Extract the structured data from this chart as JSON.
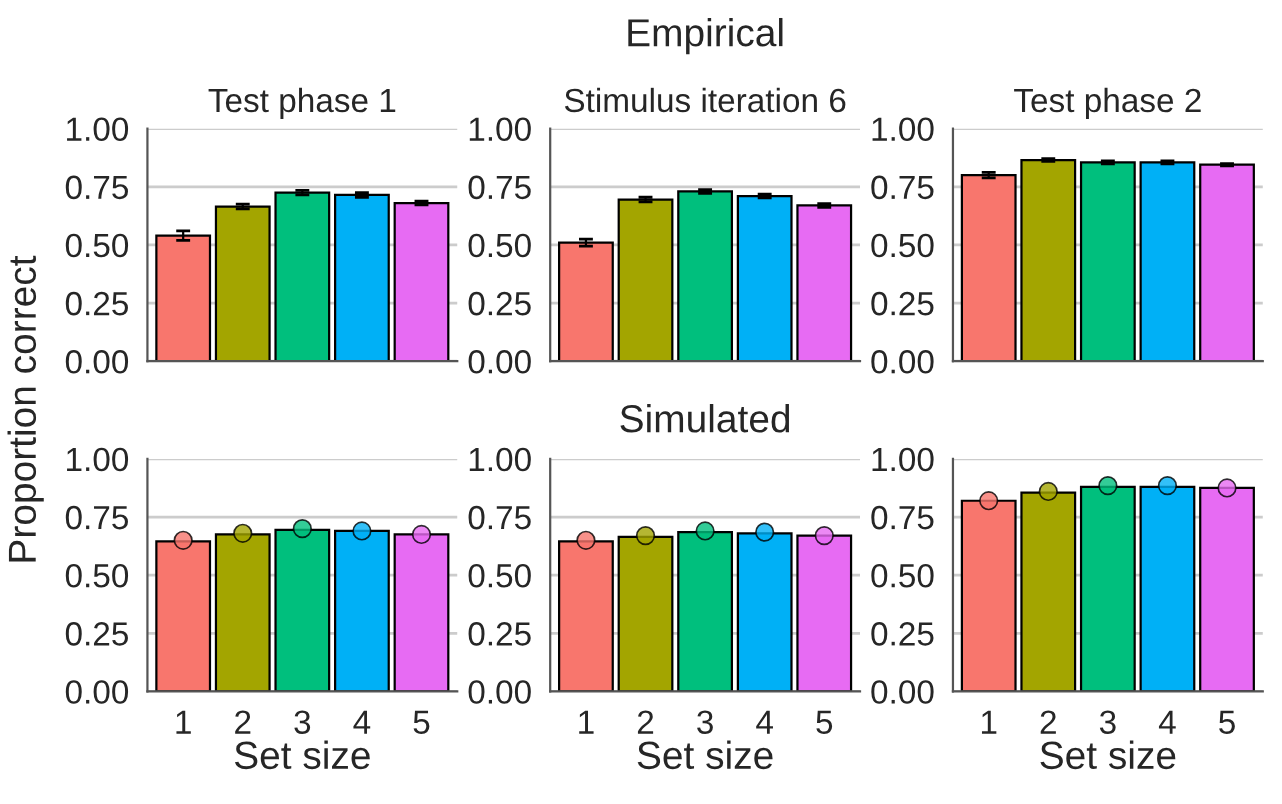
{
  "chart_data": [
    {
      "type": "bar",
      "title": "Test phase 1",
      "ylabel": "Proportion correct",
      "categories": [
        "1",
        "2",
        "3",
        "4",
        "5"
      ],
      "tick_labels": "y",
      "ylim": [
        0,
        1
      ],
      "yticks": [
        {
          "value": 0,
          "label": "0.00"
        },
        {
          "value": 0.25,
          "label": "0.25"
        },
        {
          "value": 0.5,
          "label": "0.50"
        },
        {
          "value": 0.75,
          "label": "0.75"
        },
        {
          "value": 1,
          "label": "1.00"
        }
      ],
      "grid": "y",
      "series": [
        {
          "colors": [
            "#f8766d",
            "#a3a500",
            "#00bf7d",
            "#00b0f6",
            "#e76bf3"
          ],
          "values": [
            0.54,
            0.665,
            0.725,
            0.715,
            0.68
          ],
          "errors": [
            0.02,
            0.01,
            0.01,
            0.01,
            0.008
          ]
        }
      ]
    },
    {
      "type": "bar",
      "title": "Stimulus iteration 6",
      "annotations": [
        "Empirical"
      ],
      "categories": [
        "1",
        "2",
        "3",
        "4",
        "5"
      ],
      "tick_labels": "y",
      "ylim": [
        0,
        1
      ],
      "yticks": [
        {
          "value": 0,
          "label": "0.00"
        },
        {
          "value": 0.25,
          "label": "0.25"
        },
        {
          "value": 0.5,
          "label": "0.50"
        },
        {
          "value": 0.75,
          "label": "0.75"
        },
        {
          "value": 1,
          "label": "1.00"
        }
      ],
      "grid": "y",
      "series": [
        {
          "colors": [
            "#f8766d",
            "#a3a500",
            "#00bf7d",
            "#00b0f6",
            "#e76bf3"
          ],
          "values": [
            0.51,
            0.695,
            0.73,
            0.71,
            0.67
          ],
          "errors": [
            0.015,
            0.01,
            0.008,
            0.008,
            0.008
          ]
        }
      ]
    },
    {
      "type": "bar",
      "title": "Test phase 2",
      "categories": [
        "1",
        "2",
        "3",
        "4",
        "5"
      ],
      "tick_labels": "y",
      "ylim": [
        0,
        1
      ],
      "yticks": [
        {
          "value": 0,
          "label": "0.00"
        },
        {
          "value": 0.25,
          "label": "0.25"
        },
        {
          "value": 0.5,
          "label": "0.50"
        },
        {
          "value": 0.75,
          "label": "0.75"
        },
        {
          "value": 1,
          "label": "1.00"
        }
      ],
      "grid": "y",
      "series": [
        {
          "colors": [
            "#f8766d",
            "#a3a500",
            "#00bf7d",
            "#00b0f6",
            "#e76bf3"
          ],
          "values": [
            0.8,
            0.865,
            0.855,
            0.855,
            0.845
          ],
          "errors": [
            0.012,
            0.006,
            0.006,
            0.006,
            0.005
          ]
        }
      ]
    },
    {
      "type": "bar",
      "xlabel": "Set size",
      "categories": [
        "1",
        "2",
        "3",
        "4",
        "5"
      ],
      "ylim": [
        0,
        1
      ],
      "yticks": [
        {
          "value": 0,
          "label": "0.00"
        },
        {
          "value": 0.25,
          "label": "0.25"
        },
        {
          "value": 0.5,
          "label": "0.50"
        },
        {
          "value": 0.75,
          "label": "0.75"
        },
        {
          "value": 1,
          "label": "1.00"
        }
      ],
      "grid": "y",
      "marker": "circle",
      "series": [
        {
          "colors": [
            "#f8766d",
            "#a3a500",
            "#00bf7d",
            "#00b0f6",
            "#e76bf3"
          ],
          "values": [
            0.645,
            0.675,
            0.695,
            0.69,
            0.675
          ]
        },
        {
          "type": "scatter",
          "x": [
            "1",
            "2",
            "3",
            "4",
            "5"
          ],
          "colors": [
            "#f8766d",
            "#a3a500",
            "#00bf7d",
            "#00b0f6",
            "#e76bf3"
          ],
          "values": [
            0.65,
            0.68,
            0.7,
            0.69,
            0.675
          ]
        }
      ]
    },
    {
      "type": "bar",
      "xlabel": "Set size",
      "annotations": [
        "Simulated"
      ],
      "categories": [
        "1",
        "2",
        "3",
        "4",
        "5"
      ],
      "ylim": [
        0,
        1
      ],
      "yticks": [
        {
          "value": 0,
          "label": "0.00"
        },
        {
          "value": 0.25,
          "label": "0.25"
        },
        {
          "value": 0.5,
          "label": "0.50"
        },
        {
          "value": 0.75,
          "label": "0.75"
        },
        {
          "value": 1,
          "label": "1.00"
        }
      ],
      "grid": "y",
      "marker": "circle",
      "series": [
        {
          "colors": [
            "#f8766d",
            "#a3a500",
            "#00bf7d",
            "#00b0f6",
            "#e76bf3"
          ],
          "values": [
            0.645,
            0.665,
            0.685,
            0.68,
            0.67
          ]
        },
        {
          "type": "scatter",
          "x": [
            "1",
            "2",
            "3",
            "4",
            "5"
          ],
          "colors": [
            "#f8766d",
            "#a3a500",
            "#00bf7d",
            "#00b0f6",
            "#e76bf3"
          ],
          "values": [
            0.65,
            0.67,
            0.69,
            0.685,
            0.67
          ]
        }
      ]
    },
    {
      "type": "bar",
      "xlabel": "Set size",
      "categories": [
        "1",
        "2",
        "3",
        "4",
        "5"
      ],
      "ylim": [
        0,
        1
      ],
      "yticks": [
        {
          "value": 0,
          "label": "0.00"
        },
        {
          "value": 0.25,
          "label": "0.25"
        },
        {
          "value": 0.5,
          "label": "0.50"
        },
        {
          "value": 0.75,
          "label": "0.75"
        },
        {
          "value": 1,
          "label": "1.00"
        }
      ],
      "grid": "y",
      "marker": "circle",
      "series": [
        {
          "colors": [
            "#f8766d",
            "#a3a500",
            "#00bf7d",
            "#00b0f6",
            "#e76bf3"
          ],
          "values": [
            0.82,
            0.855,
            0.88,
            0.88,
            0.875
          ]
        },
        {
          "type": "scatter",
          "x": [
            "1",
            "2",
            "3",
            "4",
            "5"
          ],
          "colors": [
            "#f8766d",
            "#a3a500",
            "#00bf7d",
            "#00b0f6",
            "#e76bf3"
          ],
          "values": [
            0.82,
            0.86,
            0.885,
            0.885,
            0.875
          ]
        }
      ]
    }
  ]
}
